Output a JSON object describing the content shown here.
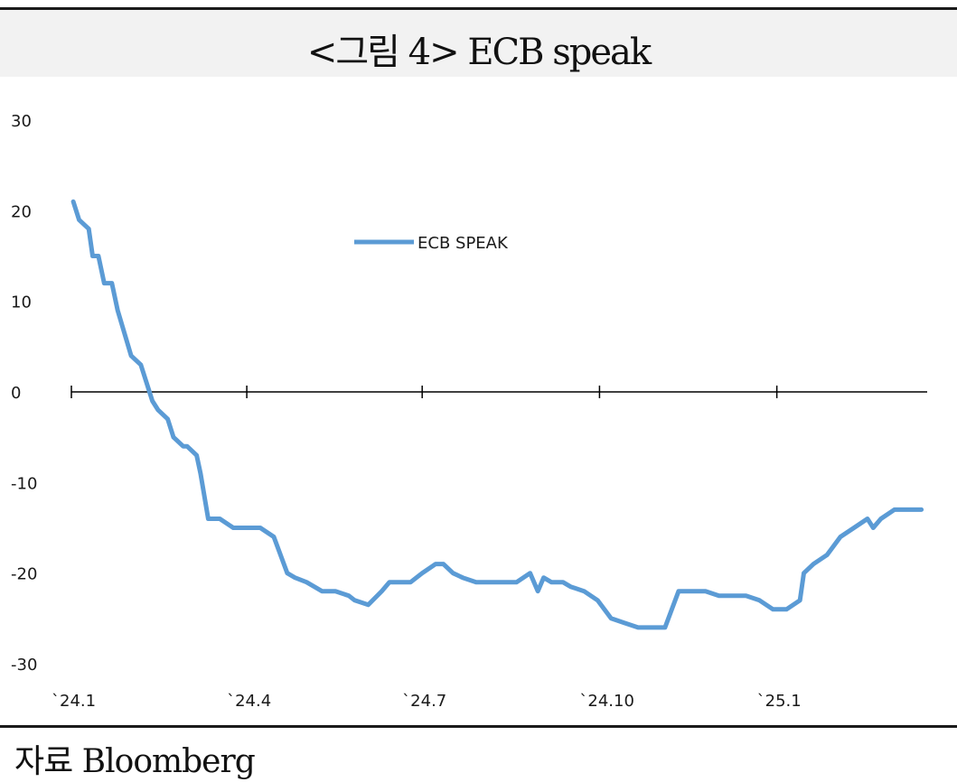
{
  "header": {
    "title": "<그림 4> ECB speak"
  },
  "source": {
    "text": "자료 Bloomberg"
  },
  "chart_data": {
    "type": "line",
    "title": "",
    "xlabel": "",
    "ylabel": "",
    "ylim": [
      -30,
      30
    ],
    "yticks": [
      30,
      20,
      10,
      0,
      -10,
      -20,
      -30
    ],
    "xticks": [
      "`24.1",
      "`24.4",
      "`24.7",
      "`24.10",
      "`25.1"
    ],
    "grid": false,
    "legend_position": "top-center",
    "colors": {
      "series": "#5b9bd5",
      "axis": "#000000"
    },
    "series": [
      {
        "name": "ECB SPEAK",
        "x": [
          "2024-01-02",
          "2024-01-05",
          "2024-01-10",
          "2024-01-12",
          "2024-01-15",
          "2024-01-18",
          "2024-01-22",
          "2024-01-25",
          "2024-02-01",
          "2024-02-06",
          "2024-02-12",
          "2024-02-15",
          "2024-02-20",
          "2024-02-23",
          "2024-02-28",
          "2024-03-01",
          "2024-03-06",
          "2024-03-08",
          "2024-03-12",
          "2024-03-18",
          "2024-03-25",
          "2024-04-01",
          "2024-04-08",
          "2024-04-15",
          "2024-04-22",
          "2024-04-26",
          "2024-05-02",
          "2024-05-10",
          "2024-05-17",
          "2024-05-24",
          "2024-05-27",
          "2024-06-03",
          "2024-06-10",
          "2024-06-14",
          "2024-06-18",
          "2024-06-25",
          "2024-07-01",
          "2024-07-08",
          "2024-07-12",
          "2024-07-17",
          "2024-07-22",
          "2024-07-29",
          "2024-08-05",
          "2024-08-12",
          "2024-08-19",
          "2024-08-26",
          "2024-08-30",
          "2024-09-02",
          "2024-09-06",
          "2024-09-12",
          "2024-09-16",
          "2024-09-23",
          "2024-09-30",
          "2024-10-07",
          "2024-10-14",
          "2024-10-21",
          "2024-10-28",
          "2024-11-04",
          "2024-11-11",
          "2024-11-18",
          "2024-11-25",
          "2024-12-02",
          "2024-12-09",
          "2024-12-16",
          "2024-12-23",
          "2024-12-30",
          "2025-01-06",
          "2025-01-13",
          "2025-01-15",
          "2025-01-20",
          "2025-01-27",
          "2025-02-03",
          "2025-02-10",
          "2025-02-17",
          "2025-02-20",
          "2025-02-24",
          "2025-03-03",
          "2025-03-07",
          "2025-03-12",
          "2025-03-17"
        ],
        "values": [
          21,
          19,
          18,
          15,
          15,
          12,
          12,
          9,
          4,
          3,
          -1,
          -2,
          -3,
          -5,
          -6,
          -6,
          -7,
          -9,
          -14,
          -14,
          -15,
          -15,
          -15,
          -16,
          -20,
          -20.5,
          -21,
          -22,
          -22,
          -22.5,
          -23,
          -23.5,
          -22,
          -21,
          -21,
          -21,
          -20,
          -19,
          -19,
          -20,
          -20.5,
          -21,
          -21,
          -21,
          -21,
          -20,
          -22,
          -20.5,
          -21,
          -21,
          -21.5,
          -22,
          -23,
          -25,
          -25.5,
          -26,
          -26,
          -26,
          -22,
          -22,
          -22,
          -22.5,
          -22.5,
          -22.5,
          -23,
          -24,
          -24,
          -23,
          -20,
          -19,
          -18,
          -16,
          -15,
          -14,
          -15,
          -14,
          -13,
          -13,
          -13,
          -13
        ]
      }
    ]
  }
}
